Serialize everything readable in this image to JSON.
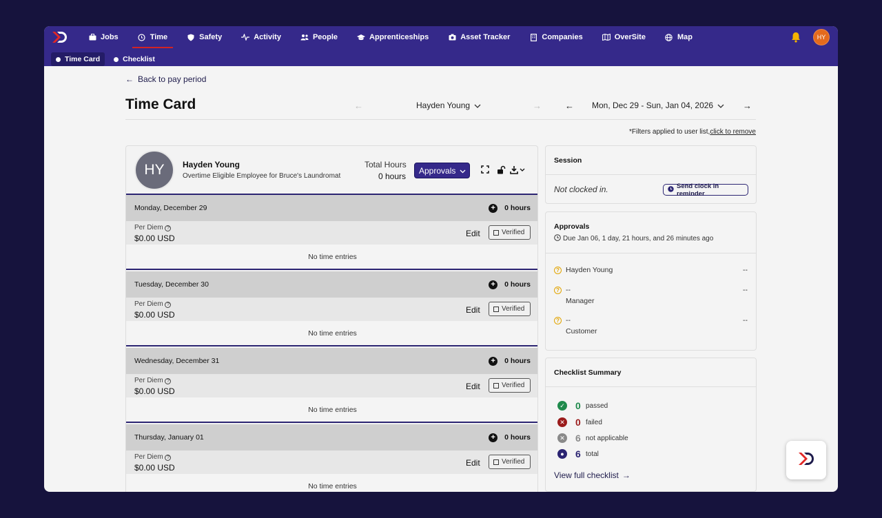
{
  "nav": {
    "items": [
      {
        "label": "Jobs",
        "icon": "briefcase-icon"
      },
      {
        "label": "Time",
        "icon": "clock-icon"
      },
      {
        "label": "Safety",
        "icon": "shield-icon"
      },
      {
        "label": "Activity",
        "icon": "pulse-icon"
      },
      {
        "label": "People",
        "icon": "people-icon"
      },
      {
        "label": "Apprenticeships",
        "icon": "graduation-cap-icon"
      },
      {
        "label": "Asset Tracker",
        "icon": "camera-icon"
      },
      {
        "label": "Companies",
        "icon": "building-icon"
      },
      {
        "label": "OverSite",
        "icon": "map-book-icon"
      },
      {
        "label": "Map",
        "icon": "globe-icon"
      }
    ],
    "active": "Time",
    "user_initials": "HY"
  },
  "subnav": {
    "items": [
      "Time Card",
      "Checklist"
    ],
    "active": "Time Card"
  },
  "page": {
    "back_label": "Back to pay period",
    "title": "Time Card",
    "user_selector": "Hayden Young",
    "date_range": "Mon, Dec 29 - Sun, Jan 04, 2026",
    "filter_note": "*Filters applied to user list,",
    "filter_link": "click to remove"
  },
  "employee": {
    "initials": "HY",
    "name": "Hayden Young",
    "subtitle": "Overtime Eligible Employee for Bruce's Laundromat",
    "total_hours_label": "Total Hours",
    "total_hours": "0 hours",
    "approvals_button": "Approvals"
  },
  "days": [
    {
      "date": "Monday, December 29",
      "hours": "0 hours",
      "per_diem_label": "Per Diem",
      "per_diem": "$0.00 USD",
      "edit": "Edit",
      "verified": "Verified",
      "empty": "No time entries"
    },
    {
      "date": "Tuesday, December 30",
      "hours": "0 hours",
      "per_diem_label": "Per Diem",
      "per_diem": "$0.00 USD",
      "edit": "Edit",
      "verified": "Verified",
      "empty": "No time entries"
    },
    {
      "date": "Wednesday, December 31",
      "hours": "0 hours",
      "per_diem_label": "Per Diem",
      "per_diem": "$0.00 USD",
      "edit": "Edit",
      "verified": "Verified",
      "empty": "No time entries"
    },
    {
      "date": "Thursday, January 01",
      "hours": "0 hours",
      "per_diem_label": "Per Diem",
      "per_diem": "$0.00 USD",
      "edit": "Edit",
      "verified": "Verified",
      "empty": "No time entries"
    }
  ],
  "session": {
    "title": "Session",
    "status": "Not clocked in.",
    "reminder_button": "Send clock in reminder"
  },
  "approvals": {
    "title": "Approvals",
    "due": "Due Jan 06, 1 day, 21 hours, and 26 minutes ago",
    "approvers": [
      {
        "name": "Hayden Young",
        "role": "",
        "status": "--"
      },
      {
        "name": "--",
        "role": "Manager",
        "status": "--"
      },
      {
        "name": "--",
        "role": "Customer",
        "status": "--"
      }
    ]
  },
  "checklist": {
    "title": "Checklist Summary",
    "stats": [
      {
        "count": "0",
        "label": "passed",
        "color": "#1f8a4c"
      },
      {
        "count": "0",
        "label": "failed",
        "color": "#9b1c1c"
      },
      {
        "count": "6",
        "label": "not applicable",
        "color": "#8a8a8a"
      },
      {
        "count": "6",
        "label": "total",
        "color": "#2b2472"
      }
    ],
    "link": "View full checklist"
  },
  "colors": {
    "brand": "#35298a",
    "accent": "#d32323",
    "background": "#16133d"
  }
}
